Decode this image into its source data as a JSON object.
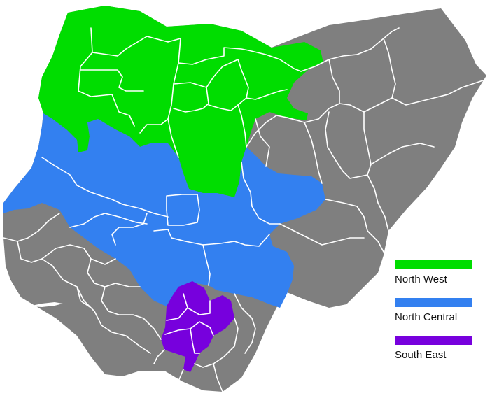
{
  "map": {
    "colors": {
      "north_west": "#00dd00",
      "north_central": "#3380f0",
      "south_east": "#7700dd",
      "other": "#7f7f7f",
      "border": "#ffffff"
    }
  },
  "legend": {
    "items": [
      {
        "label": "North West",
        "color": "#00dd00"
      },
      {
        "label": "North Central",
        "color": "#3380f0"
      },
      {
        "label": "South East",
        "color": "#7700dd"
      }
    ]
  }
}
